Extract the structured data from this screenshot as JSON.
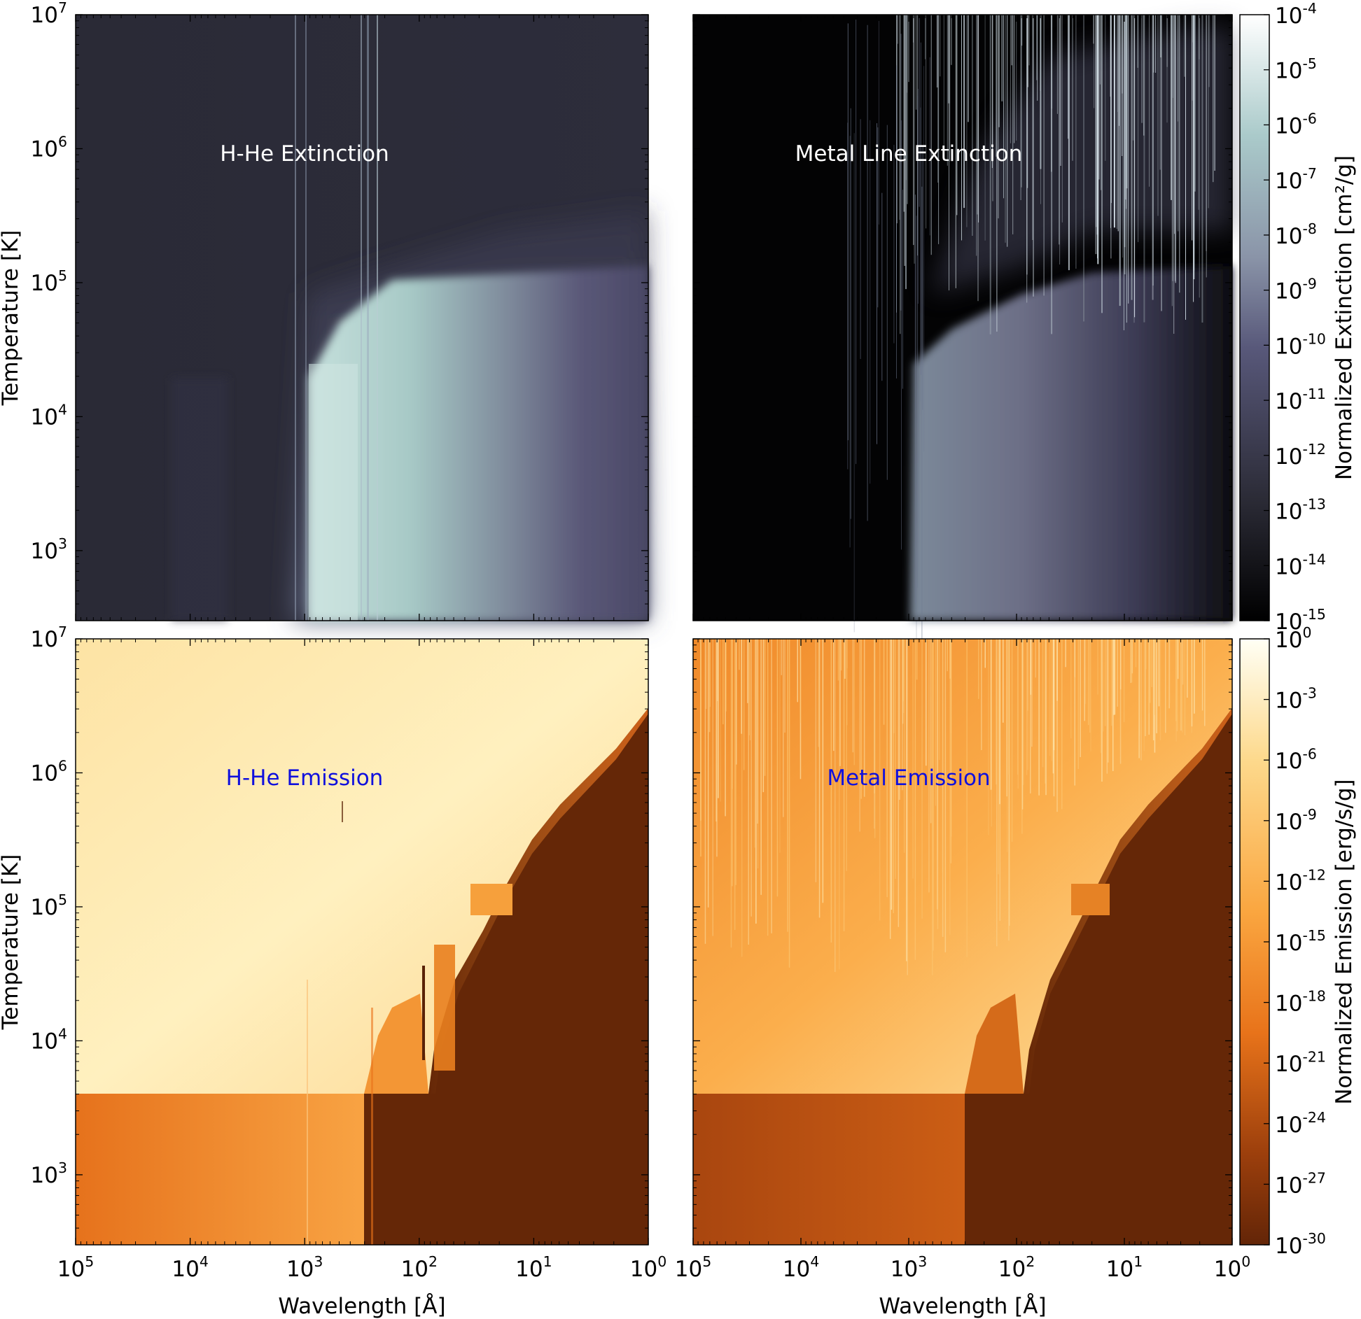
{
  "chart_data": [
    {
      "type": "heatmap",
      "panel": "top-left",
      "annotation": "H-He Extinction",
      "annotation_color": "#ffffff",
      "xlabel": "",
      "ylabel": "Temperature [K]",
      "x_scale": "log",
      "x_reversed": true,
      "xlim": [
        100000,
        1
      ],
      "y_scale": "log",
      "ylim": [
        300,
        10000000
      ],
      "x_ticks": [
        {
          "v": 100000,
          "m": "10",
          "e": "5"
        },
        {
          "v": 10000,
          "m": "10",
          "e": "4"
        },
        {
          "v": 1000,
          "m": "10",
          "e": "3"
        },
        {
          "v": 100,
          "m": "10",
          "e": "2"
        },
        {
          "v": 10,
          "m": "10",
          "e": "1"
        },
        {
          "v": 1,
          "m": "10",
          "e": "0"
        }
      ],
      "y_ticks": [
        {
          "v": 1000,
          "m": "10",
          "e": "3"
        },
        {
          "v": 10000,
          "m": "10",
          "e": "4"
        },
        {
          "v": 100000,
          "m": "10",
          "e": "5"
        },
        {
          "v": 1000000,
          "m": "10",
          "e": "6"
        },
        {
          "v": 10000000,
          "m": "10",
          "e": "7"
        }
      ],
      "show_x_ticklabels": false,
      "show_y_ticklabels": true,
      "colorbar": null
    },
    {
      "type": "heatmap",
      "panel": "top-right",
      "annotation": "Metal Line Extinction",
      "annotation_color": "#ffffff",
      "xlabel": "",
      "ylabel": "",
      "x_scale": "log",
      "x_reversed": true,
      "xlim": [
        100000,
        1
      ],
      "y_scale": "log",
      "ylim": [
        300,
        10000000
      ],
      "x_ticks": [
        {
          "v": 100000,
          "m": "10",
          "e": "5"
        },
        {
          "v": 10000,
          "m": "10",
          "e": "4"
        },
        {
          "v": 1000,
          "m": "10",
          "e": "3"
        },
        {
          "v": 100,
          "m": "10",
          "e": "2"
        },
        {
          "v": 10,
          "m": "10",
          "e": "1"
        },
        {
          "v": 1,
          "m": "10",
          "e": "0"
        }
      ],
      "y_ticks": [
        {
          "v": 1000,
          "m": "10",
          "e": "3"
        },
        {
          "v": 10000,
          "m": "10",
          "e": "4"
        },
        {
          "v": 100000,
          "m": "10",
          "e": "5"
        },
        {
          "v": 1000000,
          "m": "10",
          "e": "6"
        },
        {
          "v": 10000000,
          "m": "10",
          "e": "7"
        }
      ],
      "show_x_ticklabels": false,
      "show_y_ticklabels": false,
      "colorbar": {
        "label": "Normalized Extinction [cm²/g]",
        "scale": "log",
        "range": [
          1e-15,
          0.0001
        ],
        "colors": [
          "#000000",
          "#2b2b36",
          "#58587a",
          "#8a94a8",
          "#aacaca",
          "#ffffff"
        ],
        "ticks": [
          {
            "m": "10",
            "e": "-4"
          },
          {
            "m": "10",
            "e": "-5"
          },
          {
            "m": "10",
            "e": "-6"
          },
          {
            "m": "10",
            "e": "-7"
          },
          {
            "m": "10",
            "e": "-8"
          },
          {
            "m": "10",
            "e": "-9"
          },
          {
            "m": "10",
            "e": "-10"
          },
          {
            "m": "10",
            "e": "-11"
          },
          {
            "m": "10",
            "e": "-12"
          },
          {
            "m": "10",
            "e": "-13"
          },
          {
            "m": "10",
            "e": "-14"
          },
          {
            "m": "10",
            "e": "-15"
          }
        ]
      }
    },
    {
      "type": "heatmap",
      "panel": "bottom-left",
      "annotation": "H-He Emission",
      "annotation_color": "#1010dd",
      "xlabel": "Wavelength [Å]",
      "ylabel": "Temperature [K]",
      "x_scale": "log",
      "x_reversed": true,
      "xlim": [
        100000,
        1
      ],
      "y_scale": "log",
      "ylim": [
        300,
        10000000
      ],
      "x_ticks": [
        {
          "v": 100000,
          "m": "10",
          "e": "5"
        },
        {
          "v": 10000,
          "m": "10",
          "e": "4"
        },
        {
          "v": 1000,
          "m": "10",
          "e": "3"
        },
        {
          "v": 100,
          "m": "10",
          "e": "2"
        },
        {
          "v": 10,
          "m": "10",
          "e": "1"
        },
        {
          "v": 1,
          "m": "10",
          "e": "0"
        }
      ],
      "y_ticks": [
        {
          "v": 1000,
          "m": "10",
          "e": "3"
        },
        {
          "v": 10000,
          "m": "10",
          "e": "4"
        },
        {
          "v": 100000,
          "m": "10",
          "e": "5"
        },
        {
          "v": 1000000,
          "m": "10",
          "e": "6"
        },
        {
          "v": 10000000,
          "m": "10",
          "e": "7"
        }
      ],
      "show_x_ticklabels": true,
      "show_y_ticklabels": true,
      "colorbar": null
    },
    {
      "type": "heatmap",
      "panel": "bottom-right",
      "annotation": "Metal Emission",
      "annotation_color": "#1010dd",
      "xlabel": "Wavelength [Å]",
      "ylabel": "",
      "x_scale": "log",
      "x_reversed": true,
      "xlim": [
        100000,
        1
      ],
      "y_scale": "log",
      "ylim": [
        300,
        10000000
      ],
      "x_ticks": [
        {
          "v": 100000,
          "m": "10",
          "e": "5"
        },
        {
          "v": 10000,
          "m": "10",
          "e": "4"
        },
        {
          "v": 1000,
          "m": "10",
          "e": "3"
        },
        {
          "v": 100,
          "m": "10",
          "e": "2"
        },
        {
          "v": 10,
          "m": "10",
          "e": "1"
        },
        {
          "v": 1,
          "m": "10",
          "e": "0"
        }
      ],
      "y_ticks": [
        {
          "v": 1000,
          "m": "10",
          "e": "3"
        },
        {
          "v": 10000,
          "m": "10",
          "e": "4"
        },
        {
          "v": 100000,
          "m": "10",
          "e": "5"
        },
        {
          "v": 1000000,
          "m": "10",
          "e": "6"
        },
        {
          "v": 10000000,
          "m": "10",
          "e": "7"
        }
      ],
      "show_x_ticklabels": true,
      "show_y_ticklabels": false,
      "colorbar": {
        "label": "Normalized Emission [erg/s/g]",
        "scale": "log",
        "range": [
          1e-30,
          1
        ],
        "colors": [
          "#632507",
          "#9c3f0c",
          "#e8731a",
          "#faa640",
          "#fdd98c",
          "#fffff5"
        ],
        "ticks": [
          {
            "m": "10",
            "e": "0"
          },
          {
            "m": "10",
            "e": "-3"
          },
          {
            "m": "10",
            "e": "-6"
          },
          {
            "m": "10",
            "e": "-9"
          },
          {
            "m": "10",
            "e": "-12"
          },
          {
            "m": "10",
            "e": "-15"
          },
          {
            "m": "10",
            "e": "-18"
          },
          {
            "m": "10",
            "e": "-21"
          },
          {
            "m": "10",
            "e": "-24"
          },
          {
            "m": "10",
            "e": "-27"
          },
          {
            "m": "10",
            "e": "-30"
          }
        ]
      }
    }
  ]
}
